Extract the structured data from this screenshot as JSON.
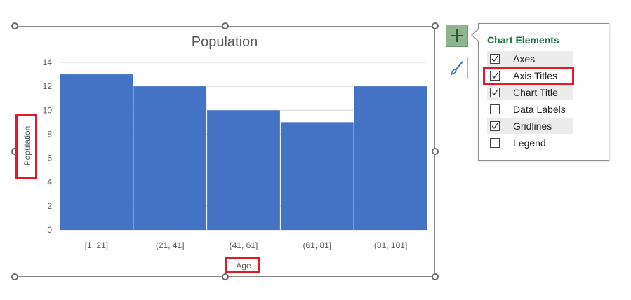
{
  "chart_data": {
    "type": "bar",
    "title": "Population",
    "xlabel": "Age",
    "ylabel": "Population",
    "categories": [
      "[1, 21]",
      "(21, 41]",
      "(41, 61]",
      "(61, 81]",
      "(81, 101]"
    ],
    "values": [
      13,
      12,
      10,
      9,
      12
    ],
    "ylim": [
      0,
      14
    ],
    "yticks": [
      "0",
      "2",
      "4",
      "6",
      "8",
      "10",
      "12",
      "14"
    ],
    "grid": true,
    "bar_color": "#4472C4"
  },
  "panel": {
    "title": "Chart Elements",
    "options": [
      {
        "label": "Axes",
        "checked": true
      },
      {
        "label": "Axis Titles",
        "checked": true
      },
      {
        "label": "Chart Title",
        "checked": true
      },
      {
        "label": "Data Labels",
        "checked": false
      },
      {
        "label": "Gridlines",
        "checked": true
      },
      {
        "label": "Legend",
        "checked": false
      }
    ]
  },
  "colors": {
    "accent_green": "#217346",
    "highlight_red": "#E31A2A"
  },
  "icons": {
    "add_button": "plus-icon",
    "style_button": "paintbrush-icon"
  }
}
